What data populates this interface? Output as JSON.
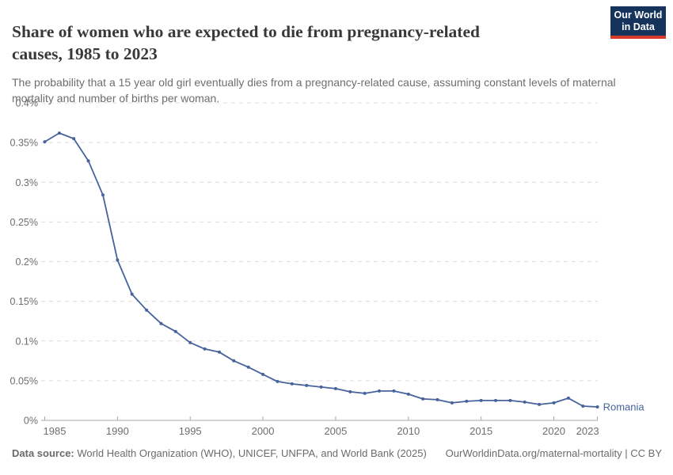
{
  "header": {
    "title_lines": [
      "Share of women who are expected to die from pregnancy-related",
      "causes, 1985 to 2023"
    ],
    "subtitle": "The probability that a 15 year old girl eventually dies from a pregnancy-related cause, assuming constant levels of maternal mortality and number of births per woman.",
    "logo": {
      "line1": "Our World",
      "line2": "in Data"
    }
  },
  "chart_data": {
    "type": "line",
    "title": "Share of women who are expected to die from pregnancy-related causes, 1985 to 2023",
    "unit": "%",
    "x": [
      1985,
      1986,
      1987,
      1988,
      1989,
      1990,
      1991,
      1992,
      1993,
      1994,
      1995,
      1996,
      1997,
      1998,
      1999,
      2000,
      2001,
      2002,
      2003,
      2004,
      2005,
      2006,
      2007,
      2008,
      2009,
      2010,
      2011,
      2012,
      2013,
      2014,
      2015,
      2016,
      2017,
      2018,
      2019,
      2020,
      2021,
      2022,
      2023
    ],
    "series": [
      {
        "name": "Romania",
        "color": "#46639C",
        "values": [
          0.351,
          0.362,
          0.355,
          0.327,
          0.284,
          0.202,
          0.159,
          0.139,
          0.122,
          0.112,
          0.098,
          0.09,
          0.086,
          0.075,
          0.067,
          0.058,
          0.049,
          0.046,
          0.044,
          0.042,
          0.04,
          0.036,
          0.034,
          0.037,
          0.037,
          0.033,
          0.027,
          0.026,
          0.022,
          0.024,
          0.025,
          0.025,
          0.025,
          0.023,
          0.02,
          0.022,
          0.028,
          0.018,
          0.017
        ]
      }
    ],
    "ylim": [
      0,
      0.4
    ],
    "yticks": [
      {
        "value": 0,
        "label": "0%"
      },
      {
        "value": 0.05,
        "label": "0.05%"
      },
      {
        "value": 0.1,
        "label": "0.1%"
      },
      {
        "value": 0.15,
        "label": "0.15%"
      },
      {
        "value": 0.2,
        "label": "0.2%"
      },
      {
        "value": 0.25,
        "label": "0.25%"
      },
      {
        "value": 0.3,
        "label": "0.3%"
      },
      {
        "value": 0.35,
        "label": "0.35%"
      },
      {
        "value": 0.4,
        "label": "0.4%"
      }
    ],
    "xticks": [
      1985,
      1990,
      1995,
      2000,
      2005,
      2010,
      2015,
      2020,
      2023
    ],
    "grid": "horizontal-dashed",
    "legend_position": "end-of-line-label"
  },
  "footer": {
    "data_source_label": "Data source:",
    "data_source_value": "World Health Organization (WHO), UNICEF, UNFPA, and World Bank (2025)",
    "attribution": "OurWorldinData.org/maternal-mortality | CC BY"
  },
  "colors": {
    "line": "#46639C",
    "logo_bg": "#16335B",
    "logo_accent": "#D93B2B",
    "grid": "#DCDCDC",
    "axis": "#A8A8A8",
    "text_muted": "#6E6E6E",
    "title": "#383838"
  }
}
